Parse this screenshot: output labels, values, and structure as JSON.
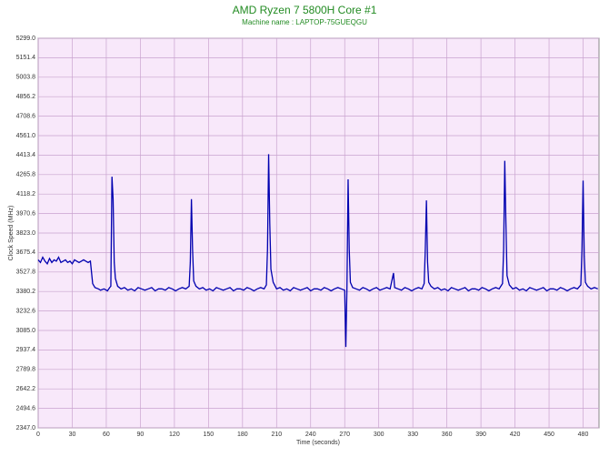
{
  "chart_data": {
    "type": "line",
    "title": "AMD Ryzen 7 5800H Core #1",
    "subtitle": "Machine name : LAPTOP-75GUEQGU",
    "x_label": "Time (seconds)",
    "y_label": "Clock Speed (MHz)",
    "color": "#0000b0",
    "grid": true,
    "xlim": [
      0,
      494
    ],
    "xticks": [
      0,
      30,
      60,
      90,
      120,
      150,
      180,
      210,
      240,
      270,
      300,
      330,
      360,
      390,
      420,
      450,
      480
    ],
    "ylim": [
      2347,
      5299
    ],
    "yticks": [
      {
        "value": 2347,
        "label": "2347.0"
      },
      2494.6,
      2642.2,
      2789.8,
      2937.4,
      {
        "value": 3085,
        "label": "3085.0"
      },
      3232.6,
      3380.2,
      3527.8,
      3675.4,
      {
        "value": 3823,
        "label": "3823.0"
      },
      3970.6,
      4118.2,
      4265.8,
      4413.4,
      {
        "value": 4561,
        "label": "4561.0"
      },
      4708.6,
      4856.2,
      5003.8,
      5151.4,
      {
        "value": 5299,
        "label": "5299.0"
      }
    ],
    "x": [
      0,
      2,
      4,
      6,
      8,
      10,
      12,
      14,
      16,
      18,
      20,
      22,
      24,
      26,
      28,
      30,
      32,
      34,
      36,
      38,
      40,
      42,
      44,
      46,
      48,
      50,
      53,
      55,
      58,
      61,
      63,
      64,
      65,
      66,
      67,
      68,
      70,
      73,
      76,
      79,
      82,
      85,
      88,
      91,
      94,
      97,
      100,
      103,
      106,
      109,
      112,
      115,
      118,
      121,
      124,
      127,
      130,
      133,
      134,
      135,
      136,
      137,
      139,
      142,
      145,
      148,
      151,
      154,
      157,
      160,
      163,
      166,
      169,
      172,
      175,
      178,
      181,
      184,
      187,
      190,
      193,
      196,
      199,
      201,
      202,
      203,
      204,
      205,
      207,
      210,
      213,
      216,
      219,
      222,
      225,
      228,
      231,
      234,
      237,
      240,
      243,
      246,
      249,
      252,
      255,
      258,
      261,
      264,
      267,
      270,
      271,
      272,
      273,
      274,
      275,
      277,
      280,
      283,
      286,
      289,
      292,
      295,
      298,
      301,
      304,
      307,
      310,
      313,
      314,
      317,
      320,
      323,
      326,
      329,
      332,
      335,
      338,
      340,
      341,
      342,
      343,
      344,
      346,
      349,
      352,
      355,
      358,
      361,
      364,
      367,
      370,
      373,
      376,
      379,
      382,
      385,
      388,
      391,
      394,
      397,
      400,
      403,
      406,
      409,
      410,
      411,
      412,
      413,
      415,
      418,
      421,
      424,
      427,
      430,
      433,
      436,
      439,
      442,
      445,
      448,
      451,
      454,
      457,
      460,
      463,
      466,
      469,
      472,
      475,
      478,
      479,
      480,
      481,
      482,
      484,
      487,
      490,
      493
    ],
    "values": [
      3620,
      3600,
      3640,
      3610,
      3590,
      3630,
      3600,
      3620,
      3610,
      3640,
      3600,
      3610,
      3620,
      3600,
      3610,
      3590,
      3620,
      3610,
      3600,
      3610,
      3620,
      3610,
      3600,
      3610,
      3440,
      3410,
      3400,
      3390,
      3400,
      3385,
      3410,
      3420,
      4250,
      4080,
      3600,
      3480,
      3420,
      3400,
      3410,
      3390,
      3400,
      3385,
      3410,
      3400,
      3390,
      3400,
      3410,
      3385,
      3400,
      3400,
      3390,
      3410,
      3400,
      3385,
      3400,
      3410,
      3400,
      3420,
      3600,
      4080,
      3700,
      3460,
      3420,
      3400,
      3410,
      3390,
      3400,
      3385,
      3410,
      3400,
      3390,
      3400,
      3410,
      3385,
      3400,
      3400,
      3390,
      3410,
      3400,
      3385,
      3400,
      3410,
      3400,
      3430,
      3700,
      4420,
      3900,
      3550,
      3450,
      3400,
      3410,
      3390,
      3400,
      3385,
      3410,
      3400,
      3390,
      3400,
      3410,
      3385,
      3400,
      3400,
      3390,
      3410,
      3400,
      3385,
      3400,
      3410,
      3400,
      3390,
      2960,
      3420,
      4230,
      3700,
      3450,
      3410,
      3400,
      3390,
      3410,
      3400,
      3385,
      3400,
      3410,
      3390,
      3400,
      3410,
      3400,
      3520,
      3410,
      3400,
      3390,
      3410,
      3400,
      3385,
      3400,
      3410,
      3400,
      3440,
      3700,
      4070,
      3600,
      3450,
      3420,
      3400,
      3410,
      3390,
      3400,
      3385,
      3410,
      3400,
      3390,
      3400,
      3410,
      3385,
      3400,
      3400,
      3390,
      3410,
      3400,
      3385,
      3400,
      3410,
      3400,
      3440,
      3700,
      4370,
      3900,
      3500,
      3430,
      3400,
      3410,
      3390,
      3400,
      3385,
      3410,
      3400,
      3390,
      3400,
      3410,
      3385,
      3400,
      3400,
      3390,
      3410,
      3400,
      3385,
      3400,
      3410,
      3400,
      3430,
      3700,
      4220,
      3650,
      3450,
      3420,
      3400,
      3410,
      3400
    ]
  }
}
